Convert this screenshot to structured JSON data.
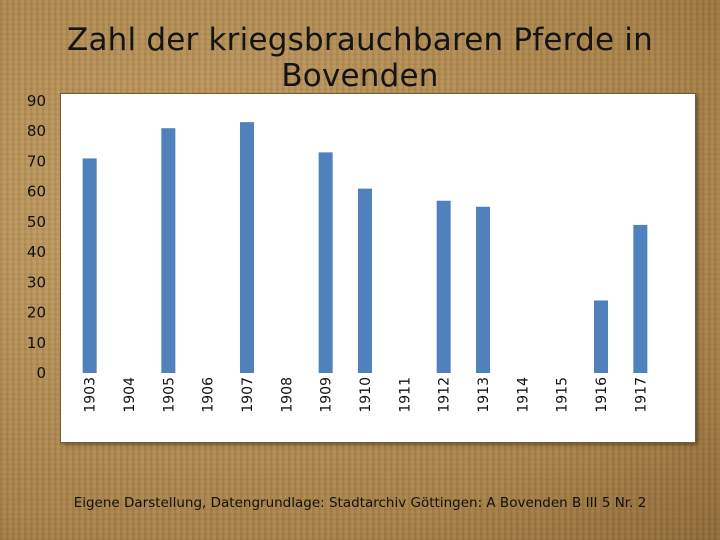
{
  "title": "Zahl der kriegsbrauchbaren Pferde in Bovenden",
  "source": "Eigene Darstellung, Datengrundlage: Stadtarchiv  Göttingen: A Bovenden B III 5 Nr. 2",
  "colors": {
    "bar": "#4f81bd",
    "background": "#b8935a",
    "plot": "#ffffff"
  },
  "chart_data": {
    "type": "bar",
    "title": "Zahl der kriegsbrauchbaren Pferde in Bovenden",
    "xlabel": "",
    "ylabel": "",
    "categories": [
      "1903",
      "1904",
      "1905",
      "1906",
      "1907",
      "1908",
      "1909",
      "1910",
      "1911",
      "1912",
      "1913",
      "1914",
      "1915",
      "1916",
      "1917"
    ],
    "values": [
      71,
      null,
      81,
      null,
      83,
      null,
      73,
      61,
      null,
      57,
      55,
      null,
      null,
      24,
      49
    ],
    "ylim": [
      0,
      90
    ],
    "yticks": [
      0,
      10,
      20,
      30,
      40,
      50,
      60,
      70,
      80,
      90
    ],
    "grid": false,
    "legend": "none"
  }
}
